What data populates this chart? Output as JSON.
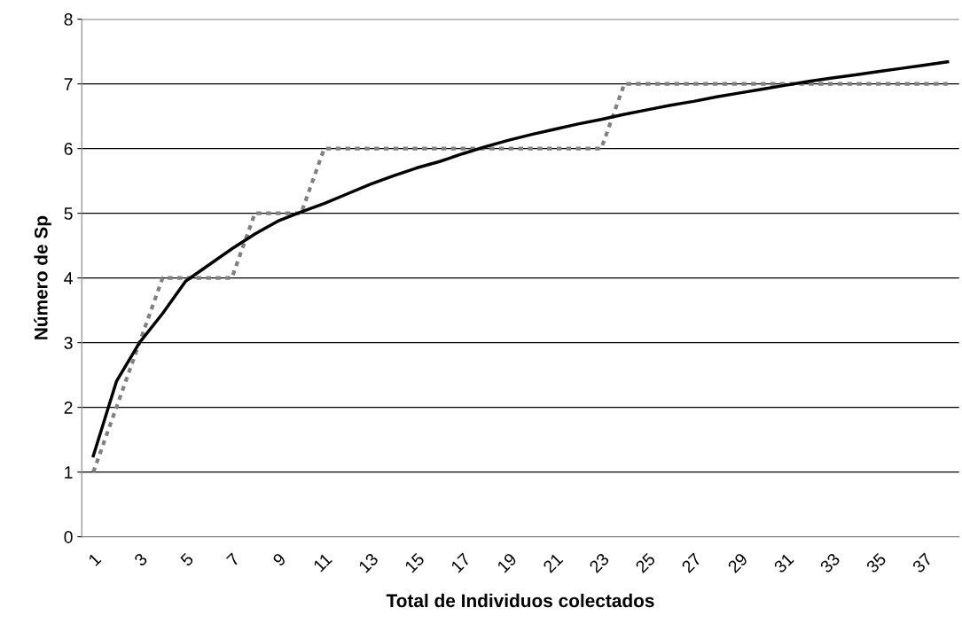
{
  "chart_data": {
    "type": "line",
    "xlabel": "Total de Individuos colectados",
    "ylabel": "Número de Sp",
    "categories": [
      "1",
      null,
      "3",
      null,
      "5",
      null,
      "7",
      null,
      "9",
      null,
      "11",
      null,
      "13",
      null,
      "15",
      null,
      "17",
      null,
      "19",
      null,
      "21",
      null,
      "23",
      null,
      "25",
      null,
      "27",
      null,
      "29",
      null,
      "31",
      null,
      "33",
      null,
      "35",
      null,
      "37",
      null
    ],
    "series": [
      {
        "color": "#808080",
        "line_style": "dashed",
        "values": [
          1,
          2,
          3,
          4,
          4,
          4,
          4,
          5,
          5,
          5,
          6,
          6,
          6,
          6,
          6,
          6,
          6,
          6,
          6,
          6,
          6,
          6,
          6,
          7,
          7,
          7,
          7,
          7,
          7,
          7,
          7,
          7,
          7,
          7,
          7,
          7,
          7,
          7
        ]
      },
      {
        "color": "#000000",
        "line_style": "solid",
        "values": [
          1.25,
          2.4,
          3.0,
          3.45,
          3.95,
          4.2,
          4.45,
          4.68,
          4.88,
          5.02,
          5.15,
          5.3,
          5.45,
          5.58,
          5.7,
          5.8,
          5.92,
          6.03,
          6.13,
          6.22,
          6.3,
          6.38,
          6.45,
          6.53,
          6.6,
          6.67,
          6.73,
          6.8,
          6.86,
          6.92,
          6.98,
          7.04,
          7.09,
          7.14,
          7.19,
          7.24,
          7.29,
          7.34
        ]
      }
    ],
    "ylim": [
      0,
      8
    ],
    "yticks": [
      0,
      1,
      2,
      3,
      4,
      5,
      6,
      7,
      8
    ],
    "grid": "y",
    "legend": false,
    "marker": "none"
  }
}
